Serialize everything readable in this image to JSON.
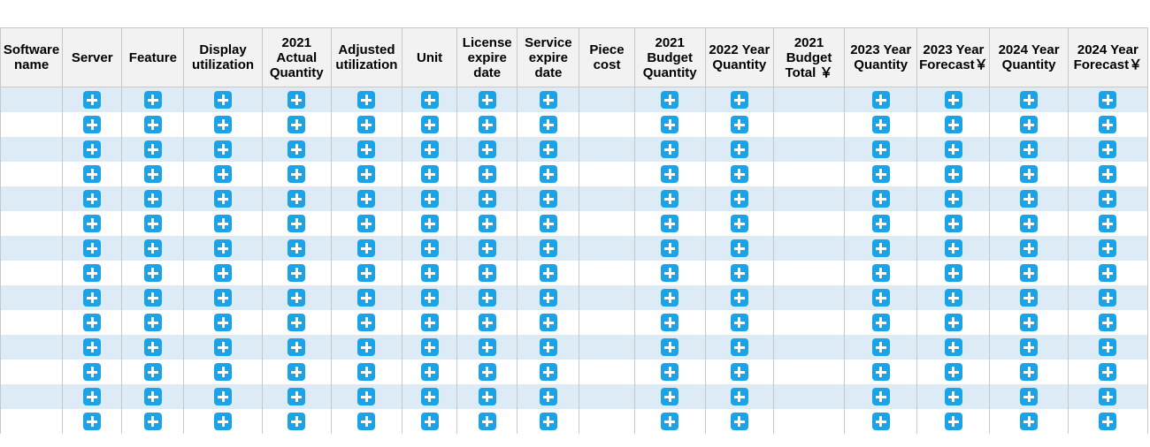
{
  "table": {
    "headers": [
      {
        "key": "software_name",
        "lines": [
          "Software",
          "name"
        ],
        "has_add": false
      },
      {
        "key": "server",
        "lines": [
          "Server"
        ],
        "has_add": true
      },
      {
        "key": "feature",
        "lines": [
          "Feature"
        ],
        "has_add": true
      },
      {
        "key": "display_utilization",
        "lines": [
          "Display",
          "utilization"
        ],
        "has_add": true
      },
      {
        "key": "actual_quantity_2021",
        "lines": [
          "2021",
          "Actual",
          "Quantity"
        ],
        "has_add": true
      },
      {
        "key": "adjusted_utilization",
        "lines": [
          "Adjusted",
          "utilization"
        ],
        "has_add": true
      },
      {
        "key": "unit",
        "lines": [
          "Unit"
        ],
        "has_add": true
      },
      {
        "key": "license_expire_date",
        "lines": [
          "License",
          "expire",
          "date"
        ],
        "has_add": true
      },
      {
        "key": "service_expire_date",
        "lines": [
          "Service",
          "expire",
          "date"
        ],
        "has_add": true
      },
      {
        "key": "piece_cost",
        "lines": [
          "Piece",
          "cost"
        ],
        "has_add": false
      },
      {
        "key": "budget_quantity_2021",
        "lines": [
          "2021",
          "Budget",
          "Quantity"
        ],
        "has_add": true
      },
      {
        "key": "year_quantity_2022",
        "lines": [
          "2022 Year",
          "Quantity"
        ],
        "has_add": true
      },
      {
        "key": "budget_total_2021",
        "lines": [
          "2021",
          "Budget",
          "Total ￥"
        ],
        "has_add": false
      },
      {
        "key": "year_quantity_2023",
        "lines": [
          "2023 Year",
          "Quantity"
        ],
        "has_add": true
      },
      {
        "key": "forecast_2023",
        "lines": [
          "2023 Year",
          "Forecast￥"
        ],
        "has_add": true
      },
      {
        "key": "year_quantity_2024",
        "lines": [
          "2024 Year",
          "Quantity"
        ],
        "has_add": true
      },
      {
        "key": "forecast_2024",
        "lines": [
          "2024 Year",
          "Forecast￥"
        ],
        "has_add": true
      }
    ],
    "row_count": 14,
    "colors": {
      "stripe": "#ddebf7",
      "header_bg": "#f2f2f2",
      "add_button": "#1aa3e8",
      "border": "#c8c8c8"
    },
    "add_icon": "plus-square-icon"
  }
}
